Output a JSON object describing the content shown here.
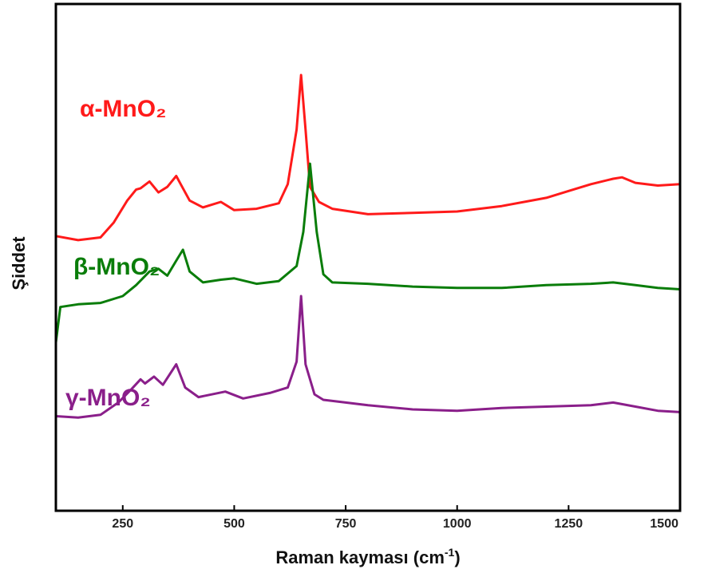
{
  "chart_data": {
    "type": "line",
    "xlabel": "Raman kayması (cm",
    "xlabel_sup": "-1",
    "xlabel_end": ")",
    "ylabel": "Şiddet",
    "xlim": [
      100,
      1500
    ],
    "xticks": [
      "250",
      "500",
      "750",
      "1000",
      "1250",
      "1500"
    ],
    "grid": false,
    "series": [
      {
        "name": "α-MnO₂",
        "color": "#ff1a1a",
        "x": [
          100,
          150,
          200,
          230,
          260,
          280,
          290,
          310,
          330,
          350,
          370,
          380,
          400,
          430,
          470,
          500,
          550,
          600,
          620,
          640,
          650,
          660,
          670,
          690,
          720,
          800,
          900,
          1000,
          1100,
          1200,
          1250,
          1300,
          1350,
          1370,
          1400,
          1450,
          1500
        ],
        "y": [
          8.2,
          7.9,
          8.1,
          9.2,
          10.8,
          11.6,
          11.7,
          12.2,
          11.4,
          11.8,
          12.6,
          12.0,
          10.8,
          10.3,
          10.7,
          10.1,
          10.2,
          10.6,
          12.0,
          16.0,
          20.0,
          16.0,
          11.8,
          10.7,
          10.2,
          9.8,
          9.9,
          10.0,
          10.4,
          11.0,
          11.5,
          12.0,
          12.4,
          12.5,
          12.1,
          11.9,
          12.0
        ]
      },
      {
        "name": "β-MnO₂",
        "color": "#0a7d0a",
        "x": [
          100,
          110,
          150,
          200,
          250,
          280,
          310,
          330,
          350,
          370,
          385,
          400,
          430,
          470,
          500,
          550,
          600,
          640,
          655,
          670,
          685,
          700,
          720,
          800,
          900,
          1000,
          1100,
          1200,
          1300,
          1350,
          1400,
          1450,
          1500
        ],
        "y": [
          0.4,
          3.0,
          3.2,
          3.3,
          3.8,
          4.6,
          5.6,
          5.8,
          5.3,
          6.4,
          7.2,
          5.6,
          4.8,
          5.0,
          5.1,
          4.7,
          4.9,
          6.0,
          8.5,
          13.5,
          8.5,
          5.4,
          4.8,
          4.7,
          4.5,
          4.4,
          4.4,
          4.6,
          4.7,
          4.8,
          4.6,
          4.4,
          4.3
        ]
      },
      {
        "name": "γ-MnO₂",
        "color": "#8a1f8a",
        "x": [
          100,
          150,
          200,
          240,
          270,
          290,
          300,
          320,
          340,
          370,
          390,
          420,
          480,
          520,
          580,
          620,
          640,
          650,
          660,
          680,
          700,
          750,
          800,
          900,
          1000,
          1100,
          1200,
          1300,
          1350,
          1400,
          1450,
          1500
        ],
        "y": [
          -5.0,
          -5.1,
          -4.9,
          -4.0,
          -3.0,
          -2.3,
          -2.6,
          -2.1,
          -2.7,
          -1.2,
          -2.9,
          -3.6,
          -3.2,
          -3.7,
          -3.3,
          -2.9,
          -1.0,
          3.8,
          -1.2,
          -3.4,
          -3.8,
          -4.0,
          -4.2,
          -4.5,
          -4.6,
          -4.4,
          -4.3,
          -4.2,
          -4.0,
          -4.3,
          -4.6,
          -4.7
        ]
      }
    ]
  }
}
